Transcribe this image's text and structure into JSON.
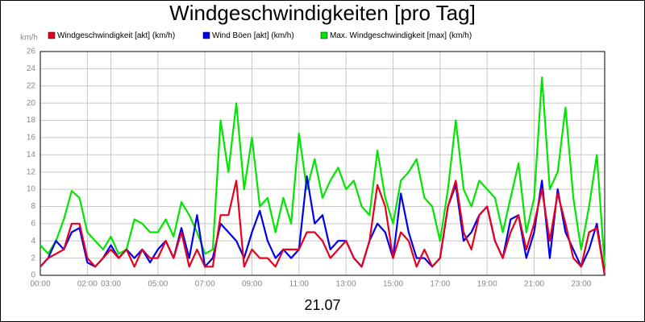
{
  "chart_data": {
    "type": "line",
    "title": "Windgeschwindigkeiten [pro Tag]",
    "y_unit": "km/h",
    "x_label": "21.07",
    "x": [
      0,
      20,
      40,
      60,
      80,
      100,
      120,
      140,
      160,
      180,
      200,
      220,
      240,
      260,
      280,
      300,
      320,
      340,
      360,
      380,
      400,
      420,
      440,
      460,
      480,
      500,
      520,
      540,
      560,
      580,
      600,
      620,
      640,
      660,
      680,
      700,
      720,
      740,
      760,
      780,
      800,
      820,
      840,
      860,
      880,
      900,
      920,
      940,
      960,
      980,
      1000,
      1020,
      1040,
      1060,
      1080,
      1100,
      1120,
      1140,
      1160,
      1180,
      1200,
      1220,
      1240,
      1260,
      1280,
      1300,
      1320,
      1340,
      1360,
      1380,
      1400,
      1420,
      1440
    ],
    "series": [
      {
        "name": "Max. Windgeschwindigkeit [max] (km/h)",
        "color": "#00e600",
        "values": [
          3.5,
          2.5,
          4,
          6.5,
          9.8,
          9,
          5,
          4,
          3,
          4.5,
          2.5,
          3,
          6.5,
          6,
          5,
          5,
          6.5,
          4.5,
          8.5,
          7,
          5,
          2.5,
          3,
          18,
          12,
          20,
          10,
          16,
          8,
          9,
          5,
          9,
          6,
          16.5,
          10,
          13.5,
          9,
          11,
          12.5,
          10,
          11,
          8,
          7,
          14.5,
          9,
          6,
          11,
          12,
          13.5,
          9,
          8,
          4,
          10,
          18,
          10,
          8,
          11,
          10,
          9,
          5,
          9,
          13,
          5,
          9,
          23,
          10,
          12,
          19.5,
          9,
          3,
          8,
          14,
          1
        ]
      },
      {
        "name": "Wind Böen [akt] (km/h)",
        "color": "#0000ee",
        "values": [
          1,
          2,
          4,
          3,
          5,
          5.5,
          1.5,
          1,
          2,
          3.5,
          2,
          3,
          2,
          3,
          1.5,
          3,
          4,
          2,
          5.5,
          2,
          7,
          1,
          2,
          6,
          5,
          4,
          2,
          5,
          7.5,
          4,
          2,
          3,
          2,
          3,
          11.5,
          6,
          7,
          3,
          4,
          4,
          2,
          1,
          4,
          6,
          5,
          2,
          9.5,
          5,
          2,
          2,
          1,
          2,
          8,
          10.5,
          4,
          5,
          7,
          8,
          4,
          2,
          6.5,
          7,
          2,
          5,
          11,
          2,
          10,
          5,
          3,
          1,
          3,
          6,
          0
        ]
      },
      {
        "name": "Windgeschwindigkeit [akt] (km/h)",
        "color": "#e8001c",
        "values": [
          1,
          2,
          2.5,
          3,
          6,
          6,
          2,
          1,
          2,
          3,
          2,
          3,
          1,
          3,
          2,
          2,
          4,
          2,
          5,
          1,
          3,
          1,
          1,
          7,
          7,
          11,
          1,
          3,
          2,
          2,
          1,
          3,
          3,
          3,
          5,
          5,
          4,
          2,
          3,
          4,
          2,
          1,
          4,
          10.5,
          8,
          2,
          5,
          4,
          1,
          3,
          1,
          2,
          8,
          11,
          5,
          3,
          7,
          8,
          4,
          2,
          5,
          7,
          3,
          6,
          10,
          4,
          9.5,
          6,
          2,
          1,
          5,
          5.5,
          0
        ]
      }
    ],
    "legend_order": [
      2,
      1,
      0
    ],
    "xlim": [
      0,
      1440
    ],
    "xticks": [
      {
        "value": 0,
        "label": "00:00"
      },
      {
        "value": 120,
        "label": "02:00"
      },
      {
        "value": 180,
        "label": "03:00"
      },
      {
        "value": 300,
        "label": "05:00"
      },
      {
        "value": 420,
        "label": "07:00"
      },
      {
        "value": 540,
        "label": "09:00"
      },
      {
        "value": 660,
        "label": "11:00"
      },
      {
        "value": 780,
        "label": "13:00"
      },
      {
        "value": 900,
        "label": "15:00"
      },
      {
        "value": 1020,
        "label": "17:00"
      },
      {
        "value": 1140,
        "label": "19:00"
      },
      {
        "value": 1260,
        "label": "21:00"
      },
      {
        "value": 1380,
        "label": "23:00"
      }
    ],
    "ylim": [
      0,
      26
    ],
    "yticks": [
      0,
      2,
      4,
      6,
      8,
      10,
      12,
      14,
      16,
      18,
      20,
      22,
      24,
      26
    ],
    "grid": true
  }
}
